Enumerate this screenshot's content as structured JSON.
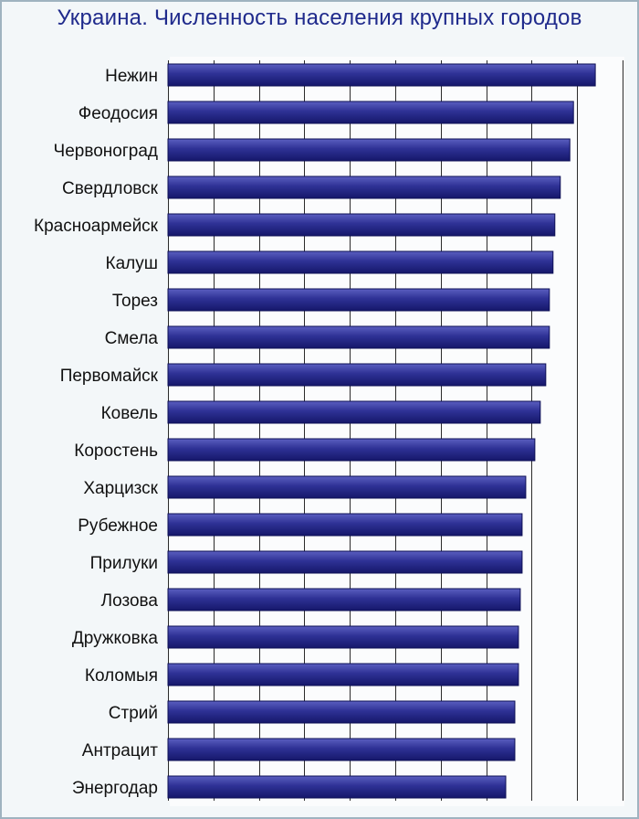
{
  "colors": {
    "bar_top": "#5b5fc0",
    "bar_mid": "#2e3195",
    "bar_bottom": "#15176a",
    "grid": "#2b2b2b",
    "title": "#1f2a8c"
  },
  "chart_data": {
    "type": "bar",
    "orientation": "horizontal",
    "title": "Украина. Численность населения крупных городов",
    "xlabel": "",
    "ylabel": "",
    "grid": true,
    "xlim": [
      0,
      100
    ],
    "categories": [
      "Нежин",
      "Феодосия",
      "Червоноград",
      "Свердловск",
      "Красноармейск",
      "Калуш",
      "Торез",
      "Смела",
      "Первомайск",
      "Ковель",
      "Коростень",
      "Харцизск",
      "Рубежное",
      "Прилуки",
      "Лозова",
      "Дружковка",
      "Коломыя",
      "Стрий",
      "Антрацит",
      "Энергодар"
    ],
    "values": [
      94.0,
      89.2,
      88.4,
      86.3,
      85.1,
      84.7,
      83.9,
      83.9,
      83.1,
      81.9,
      80.7,
      78.7,
      77.9,
      77.9,
      77.5,
      77.1,
      77.1,
      76.3,
      76.3,
      74.3
    ]
  }
}
